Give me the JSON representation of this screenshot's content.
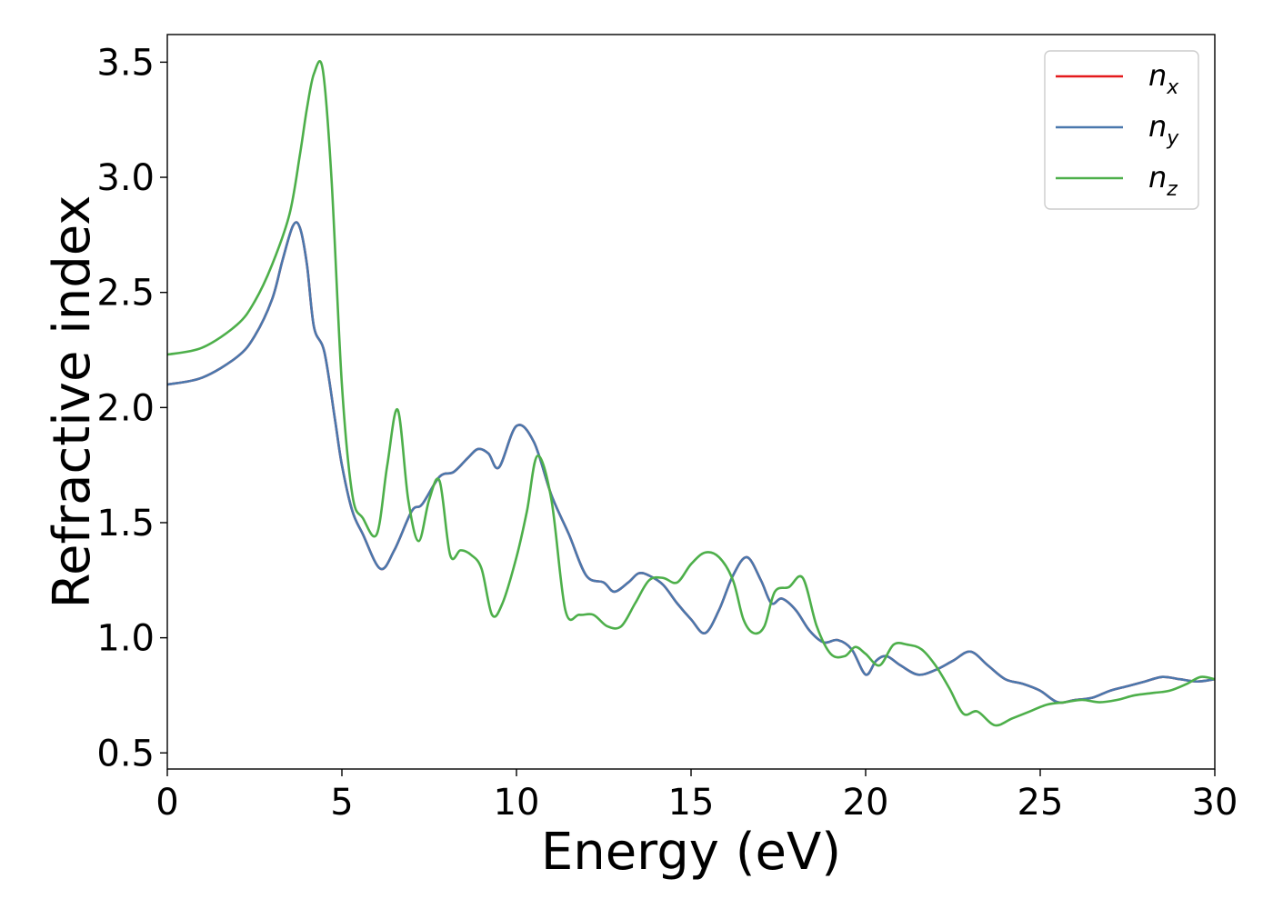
{
  "chart_data": {
    "type": "line",
    "title": "",
    "xlabel": "Energy (eV)",
    "ylabel": "Refractive index",
    "xlim": [
      0,
      30
    ],
    "ylim": [
      0.43,
      3.62
    ],
    "xticks": [
      0,
      5,
      10,
      15,
      20,
      25,
      30
    ],
    "xtick_labels": [
      "0",
      "5",
      "10",
      "15",
      "20",
      "25",
      "30"
    ],
    "yticks": [
      0.5,
      1.0,
      1.5,
      2.0,
      2.5,
      3.0,
      3.5
    ],
    "ytick_labels": [
      "0.5",
      "1.0",
      "1.5",
      "2.0",
      "2.5",
      "3.0",
      "3.5"
    ],
    "grid": false,
    "legend_position": "top-right",
    "series": [
      {
        "name": "n",
        "subscript": "x",
        "color": "#e41a1c",
        "x": [
          0,
          1,
          2,
          2.5,
          3,
          3.3,
          3.6,
          3.8,
          4.0,
          4.2,
          4.5,
          4.8,
          5.0,
          5.3,
          5.6,
          6.1,
          6.5,
          7.0,
          7.3,
          7.8,
          8.2,
          8.6,
          8.9,
          9.2,
          9.5,
          10.0,
          10.5,
          11.0,
          11.5,
          12.0,
          12.5,
          12.8,
          13.2,
          13.5,
          13.8,
          14.2,
          14.6,
          15.0,
          15.4,
          15.8,
          16.2,
          16.6,
          17.0,
          17.3,
          17.6,
          18.0,
          18.4,
          18.8,
          19.2,
          19.6,
          20.0,
          20.3,
          20.6,
          21.0,
          21.5,
          22.0,
          22.5,
          23.0,
          23.5,
          24.0,
          24.5,
          25.0,
          25.5,
          26.0,
          26.5,
          27.0,
          27.5,
          28.0,
          28.5,
          29.0,
          29.5,
          30.0
        ],
        "y": [
          2.1,
          2.13,
          2.22,
          2.31,
          2.47,
          2.64,
          2.79,
          2.78,
          2.62,
          2.35,
          2.24,
          1.95,
          1.75,
          1.55,
          1.45,
          1.3,
          1.38,
          1.55,
          1.58,
          1.7,
          1.72,
          1.78,
          1.82,
          1.8,
          1.74,
          1.92,
          1.85,
          1.62,
          1.45,
          1.27,
          1.24,
          1.2,
          1.24,
          1.28,
          1.27,
          1.23,
          1.15,
          1.08,
          1.02,
          1.12,
          1.27,
          1.35,
          1.25,
          1.15,
          1.17,
          1.12,
          1.03,
          0.98,
          0.99,
          0.95,
          0.84,
          0.9,
          0.92,
          0.88,
          0.84,
          0.86,
          0.9,
          0.94,
          0.88,
          0.82,
          0.8,
          0.77,
          0.72,
          0.73,
          0.74,
          0.77,
          0.79,
          0.81,
          0.83,
          0.82,
          0.81,
          0.82
        ]
      },
      {
        "name": "n",
        "subscript": "y",
        "color": "#4a78ad",
        "x": [
          0,
          1,
          2,
          2.5,
          3,
          3.3,
          3.6,
          3.8,
          4.0,
          4.2,
          4.5,
          4.8,
          5.0,
          5.3,
          5.6,
          6.1,
          6.5,
          7.0,
          7.3,
          7.8,
          8.2,
          8.6,
          8.9,
          9.2,
          9.5,
          10.0,
          10.5,
          11.0,
          11.5,
          12.0,
          12.5,
          12.8,
          13.2,
          13.5,
          13.8,
          14.2,
          14.6,
          15.0,
          15.4,
          15.8,
          16.2,
          16.6,
          17.0,
          17.3,
          17.6,
          18.0,
          18.4,
          18.8,
          19.2,
          19.6,
          20.0,
          20.3,
          20.6,
          21.0,
          21.5,
          22.0,
          22.5,
          23.0,
          23.5,
          24.0,
          24.5,
          25.0,
          25.5,
          26.0,
          26.5,
          27.0,
          27.5,
          28.0,
          28.5,
          29.0,
          29.5,
          30.0
        ],
        "y": [
          2.1,
          2.13,
          2.22,
          2.31,
          2.47,
          2.64,
          2.79,
          2.78,
          2.62,
          2.35,
          2.24,
          1.95,
          1.75,
          1.55,
          1.45,
          1.3,
          1.38,
          1.55,
          1.58,
          1.7,
          1.72,
          1.78,
          1.82,
          1.8,
          1.74,
          1.92,
          1.85,
          1.62,
          1.45,
          1.27,
          1.24,
          1.2,
          1.24,
          1.28,
          1.27,
          1.23,
          1.15,
          1.08,
          1.02,
          1.12,
          1.27,
          1.35,
          1.25,
          1.15,
          1.17,
          1.12,
          1.03,
          0.98,
          0.99,
          0.95,
          0.84,
          0.9,
          0.92,
          0.88,
          0.84,
          0.86,
          0.9,
          0.94,
          0.88,
          0.82,
          0.8,
          0.77,
          0.72,
          0.73,
          0.74,
          0.77,
          0.79,
          0.81,
          0.83,
          0.82,
          0.81,
          0.82
        ]
      },
      {
        "name": "n",
        "subscript": "z",
        "color": "#4daf4a",
        "x": [
          0,
          1,
          2,
          2.5,
          3,
          3.5,
          3.8,
          4.0,
          4.2,
          4.45,
          4.7,
          5.0,
          5.3,
          5.6,
          6.0,
          6.3,
          6.6,
          6.9,
          7.2,
          7.5,
          7.8,
          8.1,
          8.4,
          8.7,
          9.0,
          9.3,
          9.6,
          10.0,
          10.3,
          10.6,
          11.0,
          11.4,
          11.8,
          12.2,
          12.6,
          13.0,
          13.4,
          13.8,
          14.2,
          14.6,
          15.0,
          15.4,
          15.8,
          16.2,
          16.5,
          16.8,
          17.1,
          17.4,
          17.8,
          18.2,
          18.6,
          19.0,
          19.4,
          19.7,
          20.0,
          20.4,
          20.8,
          21.2,
          21.6,
          22.0,
          22.4,
          22.8,
          23.2,
          23.7,
          24.2,
          24.7,
          25.2,
          25.7,
          26.2,
          26.7,
          27.2,
          27.7,
          28.2,
          28.7,
          29.2,
          29.6,
          30.0
        ],
        "y": [
          2.23,
          2.26,
          2.36,
          2.46,
          2.62,
          2.84,
          3.1,
          3.3,
          3.45,
          3.47,
          3.0,
          2.1,
          1.62,
          1.52,
          1.45,
          1.75,
          1.99,
          1.6,
          1.42,
          1.6,
          1.68,
          1.36,
          1.38,
          1.36,
          1.3,
          1.1,
          1.15,
          1.35,
          1.55,
          1.79,
          1.6,
          1.12,
          1.1,
          1.1,
          1.05,
          1.05,
          1.15,
          1.25,
          1.26,
          1.24,
          1.32,
          1.37,
          1.35,
          1.25,
          1.08,
          1.02,
          1.05,
          1.2,
          1.22,
          1.26,
          1.05,
          0.93,
          0.92,
          0.96,
          0.93,
          0.88,
          0.97,
          0.97,
          0.95,
          0.88,
          0.78,
          0.67,
          0.68,
          0.62,
          0.65,
          0.68,
          0.71,
          0.72,
          0.73,
          0.72,
          0.73,
          0.75,
          0.76,
          0.77,
          0.8,
          0.83,
          0.82
        ]
      }
    ]
  }
}
